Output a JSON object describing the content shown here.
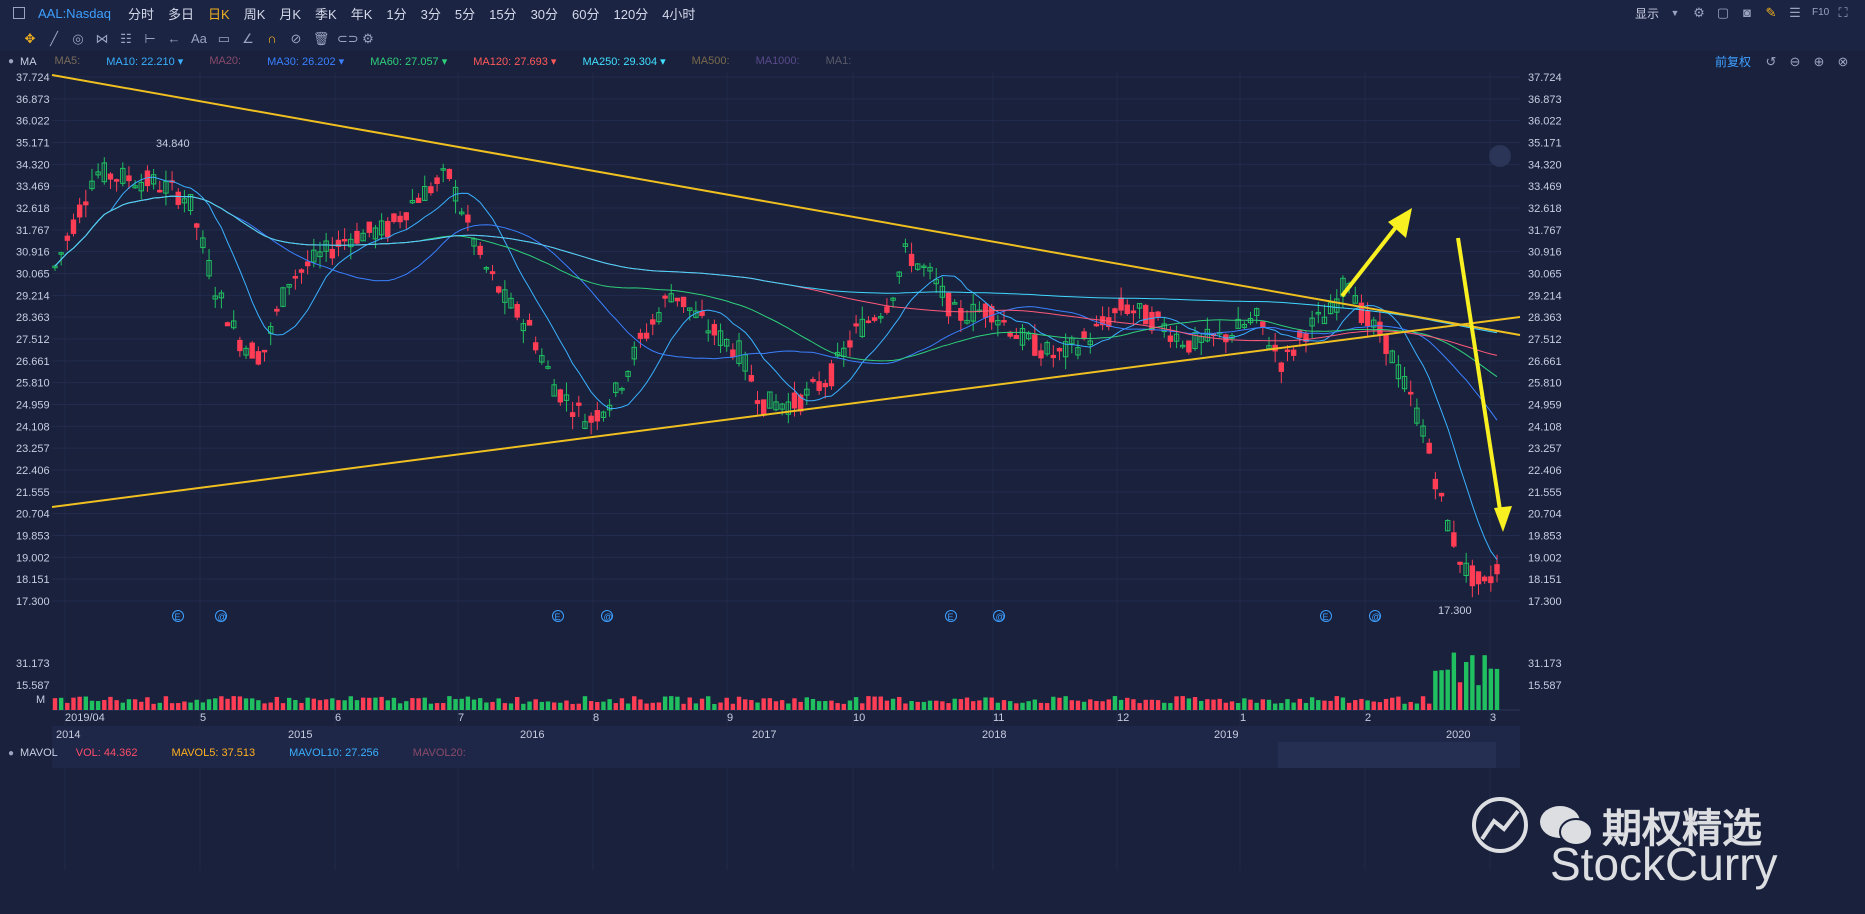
{
  "topbar": {
    "symbol": "AAL:Nasdaq",
    "timeframes": [
      "分时",
      "多日",
      "日K",
      "周K",
      "月K",
      "季K",
      "年K",
      "1分",
      "3分",
      "5分",
      "15分",
      "30分",
      "60分",
      "120分",
      "4小时"
    ],
    "active_timeframe": "日K",
    "display_label": "显示"
  },
  "toolbar": {
    "undo_label": "Aa",
    "adjust_label": "前复权"
  },
  "ma_line": {
    "indicator": "MA",
    "items": [
      {
        "label": "MA5:",
        "color": "#7a6a5a"
      },
      {
        "label": "MA10: 22.210",
        "color": "#3ab0ff"
      },
      {
        "label": "MA20:",
        "color": "#8a4a6a"
      },
      {
        "label": "MA30: 26.202",
        "color": "#3a80ff"
      },
      {
        "label": "MA60: 27.057",
        "color": "#2fd07a"
      },
      {
        "label": "MA120: 27.693",
        "color": "#ff5a5a"
      },
      {
        "label": "MA250: 29.304",
        "color": "#40e0ff"
      },
      {
        "label": "MA500:",
        "color": "#7a6a4a"
      },
      {
        "label": "MA1000:",
        "color": "#5a4a8a"
      },
      {
        "label": "MA1:",
        "color": "#5a5a6a"
      }
    ]
  },
  "price_axis": [
    "37.724",
    "36.873",
    "36.022",
    "35.171",
    "34.320",
    "33.469",
    "32.618",
    "31.767",
    "30.916",
    "30.065",
    "29.214",
    "28.363",
    "27.512",
    "26.661",
    "25.810",
    "24.959",
    "24.108",
    "23.257",
    "22.406",
    "21.555",
    "20.704",
    "19.853",
    "19.002",
    "18.151",
    "17.300"
  ],
  "annotations": {
    "high": "34.840",
    "low": "17.300"
  },
  "volume": {
    "indicator": "MAVOL",
    "items": [
      {
        "label": "VOL: 44.362",
        "color": "#ff4d6a"
      },
      {
        "label": "MAVOL5: 37.513",
        "color": "#ffb020"
      },
      {
        "label": "MAVOL10: 27.256",
        "color": "#3ab0ff"
      },
      {
        "label": "MAVOL20:",
        "color": "#8a4a6a"
      }
    ],
    "axis": [
      "31.173",
      "15.587",
      "M"
    ]
  },
  "time_axis": [
    "2019/04",
    "5",
    "6",
    "7",
    "8",
    "9",
    "10",
    "11",
    "12",
    "1",
    "2",
    "3"
  ],
  "overview_axis": [
    "2014",
    "2015",
    "2016",
    "2017",
    "2018",
    "2019",
    "2020"
  ],
  "watermark": {
    "cn": "期权精选",
    "en": "StockCurry"
  }
}
